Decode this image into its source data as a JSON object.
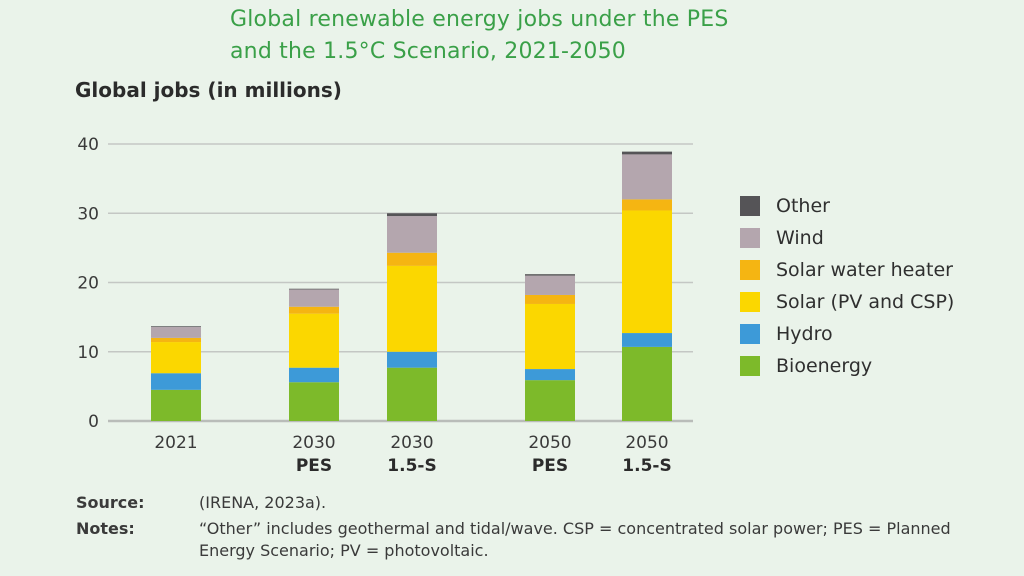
{
  "header": {
    "title_line1": "Global renewable energy jobs under the PES",
    "title_line2": "and the 1.5°C Scenario, 2021-2050"
  },
  "chart_data": {
    "type": "bar",
    "stacked": true,
    "title": "Global renewable energy jobs under the PES and the 1.5°C Scenario, 2021-2050",
    "ylabel": "Global jobs (in millions)",
    "xlabel": "",
    "ylim": [
      0,
      40
    ],
    "yticks": [
      0,
      10,
      20,
      30,
      40
    ],
    "grid": true,
    "legend_position": "right",
    "categories": [
      {
        "line1": "2021",
        "line2": ""
      },
      {
        "line1": "2030",
        "line2": "PES"
      },
      {
        "line1": "2030",
        "line2": "1.5-S"
      },
      {
        "line1": "2050",
        "line2": "PES"
      },
      {
        "line1": "2050",
        "line2": "1.5-S"
      }
    ],
    "series": [
      {
        "name": "Bioenergy",
        "color": "#7dba2a",
        "values": [
          4.5,
          5.6,
          7.7,
          5.9,
          10.7
        ]
      },
      {
        "name": "Hydro",
        "color": "#3d9ad8",
        "values": [
          2.4,
          2.1,
          2.3,
          1.6,
          2.0
        ]
      },
      {
        "name": "Solar (PV and CSP)",
        "color": "#fbd700",
        "values": [
          4.5,
          7.8,
          12.4,
          9.4,
          17.7
        ]
      },
      {
        "name": "Solar water heater",
        "color": "#f5b512",
        "values": [
          0.6,
          1.0,
          1.9,
          1.3,
          1.6
        ]
      },
      {
        "name": "Wind",
        "color": "#b4a6ae",
        "values": [
          1.6,
          2.5,
          5.3,
          2.8,
          6.5
        ]
      },
      {
        "name": "Other",
        "color": "#555457",
        "values": [
          0.1,
          0.1,
          0.4,
          0.2,
          0.4
        ]
      }
    ],
    "legend_order": [
      "Other",
      "Wind",
      "Solar water heater",
      "Solar (PV and CSP)",
      "Hydro",
      "Bioenergy"
    ]
  },
  "notes": {
    "source_label": "Source:",
    "source_text": "(IRENA, 2023a).",
    "notes_label": "Notes:",
    "notes_text": "“Other” includes geothermal and tidal/wave. CSP = concentrated solar power; PES = Planned Energy Scenario; PV = photovoltaic."
  }
}
